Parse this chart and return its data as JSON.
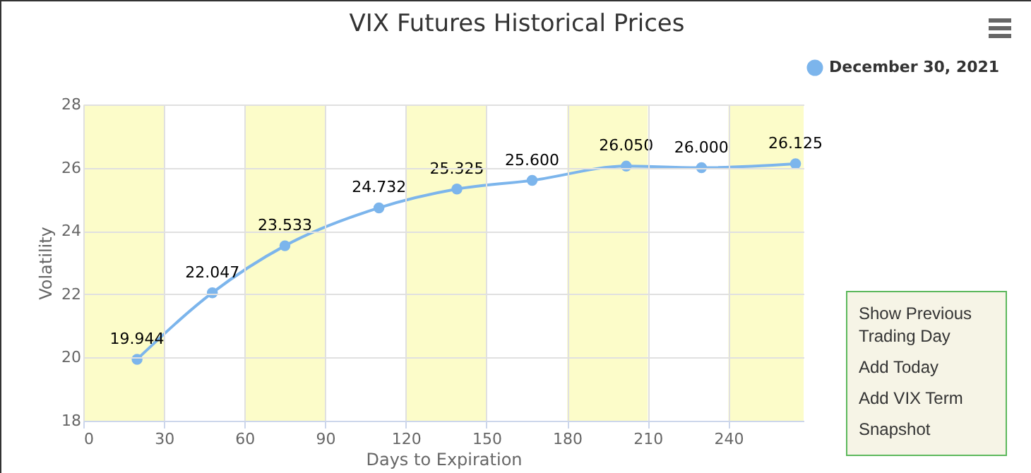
{
  "chart_data": {
    "type": "line",
    "title": "VIX Futures Historical Prices",
    "xlabel": "Days to Expiration",
    "ylabel": "Volatility",
    "x": [
      20,
      48,
      75,
      110,
      139,
      167,
      202,
      230,
      265
    ],
    "series": [
      {
        "name": "December 30, 2021",
        "color": "#7cb5ec",
        "values": [
          19.944,
          22.047,
          23.533,
          24.732,
          25.325,
          25.6,
          26.05,
          26.0,
          26.125
        ],
        "value_labels": [
          "19.944",
          "22.047",
          "23.533",
          "24.732",
          "25.325",
          "25.600",
          "26.050",
          "26.000",
          "26.125"
        ]
      }
    ],
    "xlim": [
      0,
      268
    ],
    "xticks": [
      0,
      30,
      60,
      90,
      120,
      150,
      180,
      210,
      240
    ],
    "ylim": [
      18,
      28
    ],
    "yticks": [
      18,
      20,
      22,
      24,
      26,
      28
    ],
    "bands": [
      {
        "axis": "x",
        "from": 0,
        "to": 30,
        "color": "#fcfcc9"
      },
      {
        "axis": "x",
        "from": 60,
        "to": 90,
        "color": "#fcfcc9"
      },
      {
        "axis": "x",
        "from": 120,
        "to": 150,
        "color": "#fcfcc9"
      },
      {
        "axis": "x",
        "from": 180,
        "to": 210,
        "color": "#fcfcc9"
      },
      {
        "axis": "x",
        "from": 240,
        "to": 268,
        "color": "#fcfcc9"
      }
    ],
    "annotations": [
      "Show Previous Trading Day",
      "Add Today",
      "Add VIX Term",
      "Snapshot"
    ],
    "grid": true,
    "legend": "top right",
    "marker": "circle",
    "line_style": "solid"
  }
}
